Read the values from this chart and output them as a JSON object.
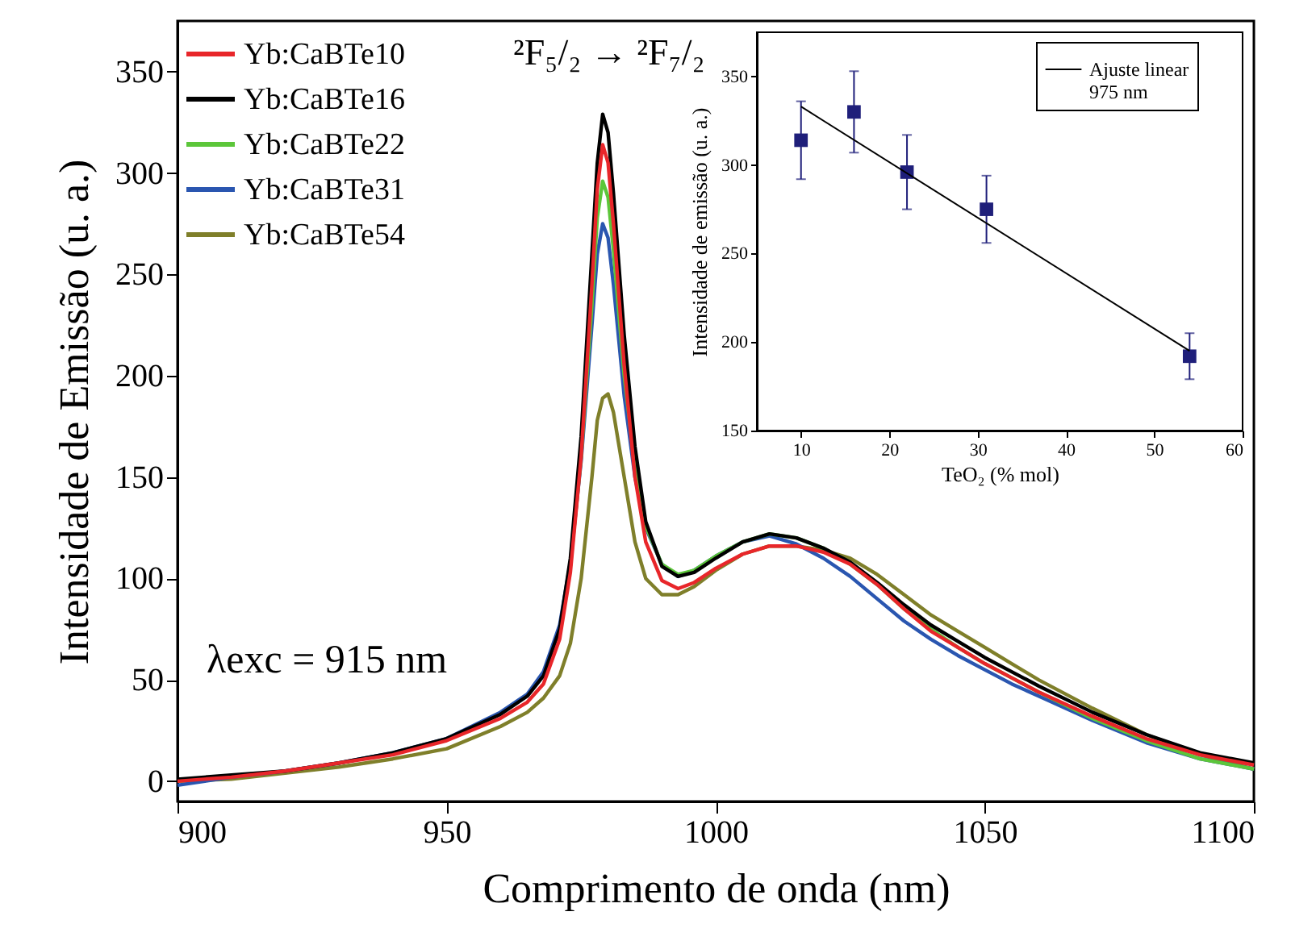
{
  "chart_data": [
    {
      "type": "line",
      "xlabel": "Comprimento de onda (nm)",
      "ylabel": "Intensidade de Emissão (u. a.)",
      "xlim": [
        900,
        1100
      ],
      "xticks": [
        900,
        950,
        1000,
        1050,
        1100
      ],
      "ylim": [
        -10,
        375
      ],
      "yticks": [
        0,
        50,
        100,
        150,
        200,
        250,
        300,
        350
      ],
      "legend": "top left",
      "grid": false,
      "line_style": "solid",
      "marker": "none",
      "annotations": [
        "²F₅/₂ → ²F₇/₂",
        "λexc = 915 nm"
      ],
      "x": [
        900,
        910,
        920,
        930,
        940,
        950,
        960,
        965,
        968,
        971,
        973,
        975,
        977,
        978,
        979,
        980,
        981,
        983,
        985,
        987,
        990,
        993,
        996,
        1000,
        1005,
        1010,
        1015,
        1020,
        1025,
        1030,
        1035,
        1040,
        1045,
        1050,
        1055,
        1060,
        1070,
        1080,
        1090,
        1100
      ],
      "series": [
        {
          "name": "Yb:CaBTe10",
          "color": "#e8262a",
          "values": [
            0,
            2,
            5,
            9,
            13,
            20,
            31,
            39,
            48,
            70,
            103,
            160,
            245,
            292,
            314,
            305,
            275,
            205,
            150,
            118,
            99,
            95,
            98,
            105,
            112,
            116,
            116,
            113,
            107,
            97,
            85,
            74,
            66,
            58,
            51,
            44,
            32,
            21,
            13,
            8
          ]
        },
        {
          "name": "Yb:CaBTe16",
          "color": "#000000",
          "values": [
            1,
            3,
            5,
            9,
            14,
            21,
            33,
            42,
            52,
            75,
            110,
            170,
            260,
            305,
            329,
            320,
            290,
            220,
            165,
            128,
            106,
            101,
            103,
            110,
            118,
            122,
            120,
            115,
            108,
            98,
            87,
            77,
            69,
            61,
            54,
            47,
            34,
            23,
            14,
            9
          ]
        },
        {
          "name": "Yb:CaBTe22",
          "color": "#5cc63a",
          "values": [
            null,
            null,
            null,
            null,
            null,
            null,
            null,
            null,
            null,
            null,
            106,
            160,
            235,
            278,
            296,
            288,
            262,
            200,
            155,
            126,
            107,
            102,
            104,
            111,
            118,
            122,
            120,
            115,
            107,
            97,
            85,
            75,
            66,
            58,
            51,
            44,
            31,
            20,
            11,
            6
          ]
        },
        {
          "name": "Yb:CaBTe31",
          "color": "#2a56b0",
          "values": [
            -2,
            2,
            5,
            9,
            14,
            21,
            34,
            43,
            54,
            77,
            108,
            158,
            225,
            260,
            275,
            268,
            245,
            190,
            150,
            125,
            107,
            101,
            104,
            111,
            118,
            121,
            117,
            110,
            101,
            90,
            79,
            70,
            62,
            55,
            48,
            42,
            30,
            19,
            11,
            6
          ]
        },
        {
          "name": "Yb:CaBTe54",
          "color": "#7f7f2a",
          "values": [
            0,
            1,
            4,
            7,
            11,
            16,
            27,
            34,
            41,
            52,
            68,
            100,
            150,
            178,
            189,
            191,
            182,
            150,
            118,
            100,
            92,
            92,
            96,
            104,
            112,
            116,
            116,
            114,
            110,
            102,
            92,
            82,
            74,
            66,
            58,
            50,
            36,
            23,
            13,
            6
          ]
        }
      ]
    },
    {
      "type": "scatter",
      "xlabel": "TeO₂ (% mol)",
      "ylabel": "Intensidade de emissão (u. a.)",
      "xlim": [
        5,
        60
      ],
      "xticks": [
        10,
        20,
        30,
        40,
        50,
        60
      ],
      "ylim": [
        150,
        375
      ],
      "yticks": [
        150,
        200,
        250,
        300,
        350
      ],
      "legend": "top right",
      "grid": false,
      "series": [
        {
          "marker": "square",
          "color": "#1f1f7a",
          "x": [
            10,
            16,
            22,
            31,
            54
          ],
          "values": [
            314,
            330,
            296,
            275,
            192
          ],
          "errors": [
            22,
            23,
            21,
            19,
            13
          ]
        },
        {
          "type": "line",
          "name": "Ajuste linear\n975 nm",
          "color": "#000000",
          "x": [
            10,
            54
          ],
          "values": [
            333,
            195
          ]
        }
      ]
    }
  ]
}
